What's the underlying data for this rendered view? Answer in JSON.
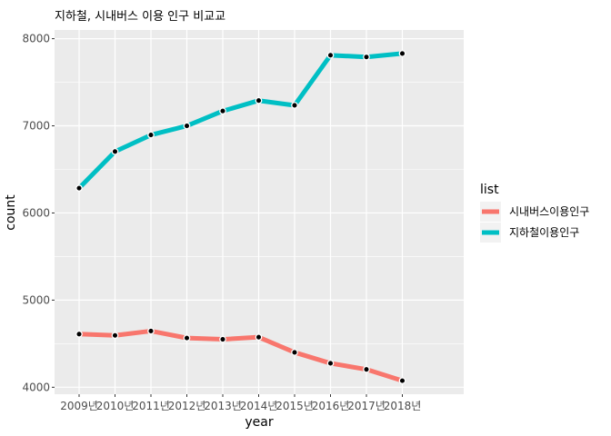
{
  "chart_data": {
    "type": "line",
    "title": "지하철, 시내버스 이용 인구 비교교",
    "xlabel": "year",
    "ylabel": "count",
    "categories": [
      "2009년",
      "2010년",
      "2011년",
      "2012년",
      "2013년",
      "2014년",
      "2015년",
      "2016년",
      "2017년",
      "2018년"
    ],
    "ylim": [
      3920,
      8100
    ],
    "y_ticks": [
      4000,
      5000,
      6000,
      7000,
      8000
    ],
    "grid": true,
    "legend_position": "right",
    "legend_title": "list",
    "series": [
      {
        "name": "시내버스이용인구",
        "color": "#F8766D",
        "values": [
          4610,
          4595,
          4645,
          4565,
          4550,
          4575,
          4400,
          4275,
          4205,
          4075
        ]
      },
      {
        "name": "지하철이용인구",
        "color": "#00BFC4",
        "values": [
          6285,
          6705,
          6895,
          7000,
          7170,
          7290,
          7235,
          7810,
          7790,
          7830
        ]
      }
    ]
  }
}
